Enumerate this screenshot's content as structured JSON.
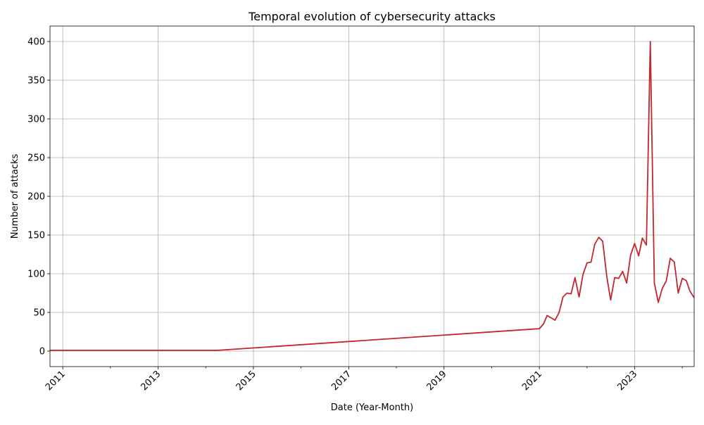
{
  "chart_data": {
    "type": "line",
    "title": "Temporal evolution of cybersecurity attacks",
    "xlabel": "Date (Year-Month)",
    "ylabel": "Number of attacks",
    "x_type": "date",
    "xlim": [
      "2010-09-25",
      "2024-04-01"
    ],
    "ylim": [
      -20,
      420
    ],
    "x_major_ticks": [
      "2011-01",
      "2013-01",
      "2015-01",
      "2017-01",
      "2019-01",
      "2021-01",
      "2023-01"
    ],
    "x_major_tick_labels": [
      "2011",
      "2013",
      "2015",
      "2017",
      "2019",
      "2021",
      "2023"
    ],
    "x_minor_ticks": [
      "2012-01",
      "2014-01",
      "2016-01",
      "2018-01",
      "2020-01",
      "2022-01",
      "2024-01"
    ],
    "x_tick_rotation": 45,
    "y_ticks": [
      0,
      50,
      100,
      150,
      200,
      250,
      300,
      350,
      400
    ],
    "y_tick_labels": [
      "0",
      "50",
      "100",
      "150",
      "200",
      "250",
      "300",
      "350",
      "400"
    ],
    "grid": true,
    "legend": "none",
    "series": [
      {
        "color": "#c1272d",
        "points": [
          [
            "2010-09",
            1
          ],
          [
            "2014-04",
            1
          ],
          [
            "2021-01",
            29
          ],
          [
            "2021-02",
            35
          ],
          [
            "2021-03",
            46
          ],
          [
            "2021-05",
            40
          ],
          [
            "2021-06",
            50
          ],
          [
            "2021-07",
            70
          ],
          [
            "2021-08",
            75
          ],
          [
            "2021-09",
            74
          ],
          [
            "2021-10",
            95
          ],
          [
            "2021-11",
            70
          ],
          [
            "2021-12",
            99
          ],
          [
            "2022-01",
            114
          ],
          [
            "2022-02",
            115
          ],
          [
            "2022-03",
            138
          ],
          [
            "2022-04",
            147
          ],
          [
            "2022-05",
            142
          ],
          [
            "2022-06",
            97
          ],
          [
            "2022-07",
            66
          ],
          [
            "2022-08",
            95
          ],
          [
            "2022-09",
            94
          ],
          [
            "2022-10",
            103
          ],
          [
            "2022-11",
            88
          ],
          [
            "2022-12",
            124
          ],
          [
            "2023-01",
            139
          ],
          [
            "2023-02",
            123
          ],
          [
            "2023-03",
            146
          ],
          [
            "2023-04",
            137
          ],
          [
            "2023-05",
            400
          ],
          [
            "2023-06",
            88
          ],
          [
            "2023-07",
            63
          ],
          [
            "2023-08",
            81
          ],
          [
            "2023-09",
            91
          ],
          [
            "2023-10",
            120
          ],
          [
            "2023-11",
            115
          ],
          [
            "2023-12",
            75
          ],
          [
            "2024-01",
            94
          ],
          [
            "2024-02",
            91
          ],
          [
            "2024-03",
            77
          ],
          [
            "2024-04",
            69
          ]
        ]
      }
    ]
  }
}
